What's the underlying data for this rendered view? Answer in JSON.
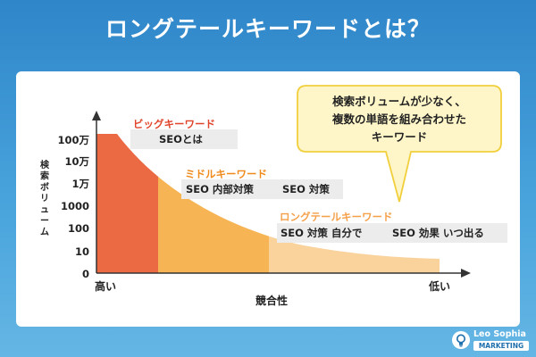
{
  "title": "ロングテールキーワードとは？",
  "y_axis": {
    "label": "検索ボリューム",
    "ticks": [
      "100万",
      "10万",
      "1万",
      "1000",
      "100",
      "10",
      "0"
    ]
  },
  "x_axis": {
    "label": "競合性",
    "left_label": "高い",
    "right_label": "低い"
  },
  "callout": {
    "lines": [
      "検索ボリュームが少なく、",
      "複数の単語を組み合わせた",
      "キーワード"
    ]
  },
  "segments": [
    {
      "name": "ビッグキーワード",
      "examples": [
        "SEOとは"
      ],
      "color": "#ec6a43",
      "name_color": "#e0452c"
    },
    {
      "name": "ミドルキーワード",
      "examples": [
        "SEO 内部対策",
        "SEO 対策"
      ],
      "color": "#f6b454",
      "name_color": "#f08a1c"
    },
    {
      "name": "ロングテールキーワード",
      "examples": [
        "SEO 対策 自分で",
        "SEO 効果 いつ出る"
      ],
      "color": "#f9d29c",
      "name_color": "#f5a04a"
    }
  ],
  "brand": {
    "name": "Leo Sophia",
    "sub": "MARKETING"
  },
  "colors": {
    "background": "#3a93d3",
    "callout_fill": "#fef6c8",
    "callout_border": "#f1cf3c",
    "label_bg": "#ececec"
  }
}
